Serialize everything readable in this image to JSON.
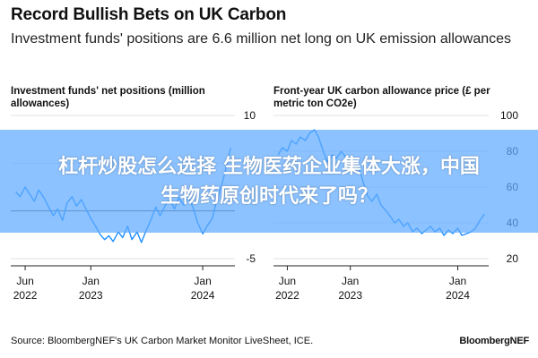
{
  "header": {
    "title": "Record Bullish Bets on UK Carbon",
    "subtitle": "Investment funds' positions are 6.6 million net long on UK emission allowances"
  },
  "footer": {
    "source": "Source: BloombergNEF's UK Carbon Market Monitor LiveSheet, ICE.",
    "brand": "BloombergNEF"
  },
  "banner": {
    "line1": "杠杆炒股怎么选择 生物医药企业集体大涨，中国",
    "line2": "生物药原创时代来了吗？"
  },
  "chart_data": [
    {
      "type": "line",
      "title": "Investment funds' net positions (million allowances)",
      "color": "#1f8fff",
      "ylim": [
        -5,
        10
      ],
      "yticks": [
        10,
        5,
        0,
        -5
      ],
      "ytick_labels": [
        "10",
        "",
        "",
        "-5"
      ],
      "xlim": [
        "2022-04-15",
        "2024-04-15"
      ],
      "xticks": [
        {
          "date": "2022-06-01",
          "label": "Jun",
          "sub": "2022"
        },
        {
          "date": "2023-01-01",
          "label": "Jan",
          "sub": "2023"
        },
        {
          "date": "2024-01-01",
          "label": "Jan",
          "sub": "2024"
        }
      ],
      "zero_line": true,
      "series": [
        {
          "x": [
            "2022-05-01",
            "2022-05-15",
            "2022-06-01",
            "2022-06-15",
            "2022-07-01",
            "2022-07-15",
            "2022-08-01",
            "2022-08-15",
            "2022-09-01",
            "2022-09-15",
            "2022-10-01",
            "2022-10-15",
            "2022-11-01",
            "2022-11-15",
            "2022-12-01",
            "2022-12-15",
            "2023-01-01",
            "2023-01-15",
            "2023-02-01",
            "2023-02-15",
            "2023-03-01",
            "2023-03-15",
            "2023-04-01",
            "2023-04-15",
            "2023-05-01",
            "2023-05-15",
            "2023-06-01",
            "2023-06-15",
            "2023-07-01",
            "2023-07-15",
            "2023-08-01",
            "2023-08-15",
            "2023-09-01",
            "2023-09-15",
            "2023-10-01",
            "2023-10-15",
            "2023-11-01",
            "2023-11-15",
            "2023-12-01",
            "2023-12-15",
            "2024-01-01",
            "2024-01-15",
            "2024-02-01",
            "2024-02-15",
            "2024-03-01",
            "2024-03-15",
            "2024-04-01"
          ],
          "y": [
            2.0,
            1.5,
            2.5,
            1.8,
            1.0,
            2.2,
            1.4,
            0.5,
            -0.5,
            0.2,
            -1.0,
            0.8,
            1.5,
            0.5,
            1.2,
            0.3,
            -0.8,
            -1.5,
            -2.5,
            -3.0,
            -2.6,
            -3.2,
            -2.2,
            -2.8,
            -1.6,
            -3.0,
            -2.2,
            -3.3,
            -2.0,
            -1.0,
            0.4,
            -0.5,
            0.6,
            1.2,
            0.2,
            1.4,
            0.6,
            1.5,
            0.3,
            -1.2,
            -2.4,
            -1.6,
            -0.8,
            1.0,
            2.5,
            4.2,
            6.6
          ]
        }
      ]
    },
    {
      "type": "line",
      "title": "Front-year UK carbon allowance price (£ per metric ton CO2e)",
      "color": "#1f8fff",
      "ylim": [
        20,
        100
      ],
      "yticks": [
        100,
        80,
        60,
        40,
        20
      ],
      "ytick_labels": [
        "100",
        "80",
        "60",
        "40",
        "20"
      ],
      "xlim": [
        "2022-04-15",
        "2024-04-15"
      ],
      "xticks": [
        {
          "date": "2022-06-01",
          "label": "Jun",
          "sub": "2022"
        },
        {
          "date": "2023-01-01",
          "label": "Jan",
          "sub": "2023"
        },
        {
          "date": "2024-01-01",
          "label": "Jan",
          "sub": "2024"
        }
      ],
      "zero_line": false,
      "series": [
        {
          "x": [
            "2022-05-01",
            "2022-05-15",
            "2022-06-01",
            "2022-06-15",
            "2022-07-01",
            "2022-07-15",
            "2022-08-01",
            "2022-08-15",
            "2022-09-01",
            "2022-09-15",
            "2022-10-01",
            "2022-10-15",
            "2022-11-01",
            "2022-11-15",
            "2022-12-01",
            "2022-12-15",
            "2023-01-01",
            "2023-01-15",
            "2023-02-01",
            "2023-02-15",
            "2023-03-01",
            "2023-03-15",
            "2023-04-01",
            "2023-04-15",
            "2023-05-01",
            "2023-05-15",
            "2023-06-01",
            "2023-06-15",
            "2023-07-01",
            "2023-07-15",
            "2023-08-01",
            "2023-08-15",
            "2023-09-01",
            "2023-09-15",
            "2023-10-01",
            "2023-10-15",
            "2023-11-01",
            "2023-11-15",
            "2023-12-01",
            "2023-12-15",
            "2024-01-01",
            "2024-01-15",
            "2024-02-01",
            "2024-02-15",
            "2024-03-01",
            "2024-03-15",
            "2024-04-01"
          ],
          "y": [
            78,
            82,
            80,
            86,
            84,
            88,
            86,
            90,
            92,
            88,
            80,
            74,
            78,
            76,
            80,
            77,
            73,
            75,
            70,
            62,
            55,
            52,
            56,
            50,
            47,
            44,
            40,
            42,
            38,
            40,
            35,
            37,
            34,
            36,
            38,
            35,
            37,
            33,
            36,
            34,
            37,
            33,
            34,
            35,
            37,
            41,
            45
          ]
        }
      ]
    }
  ]
}
